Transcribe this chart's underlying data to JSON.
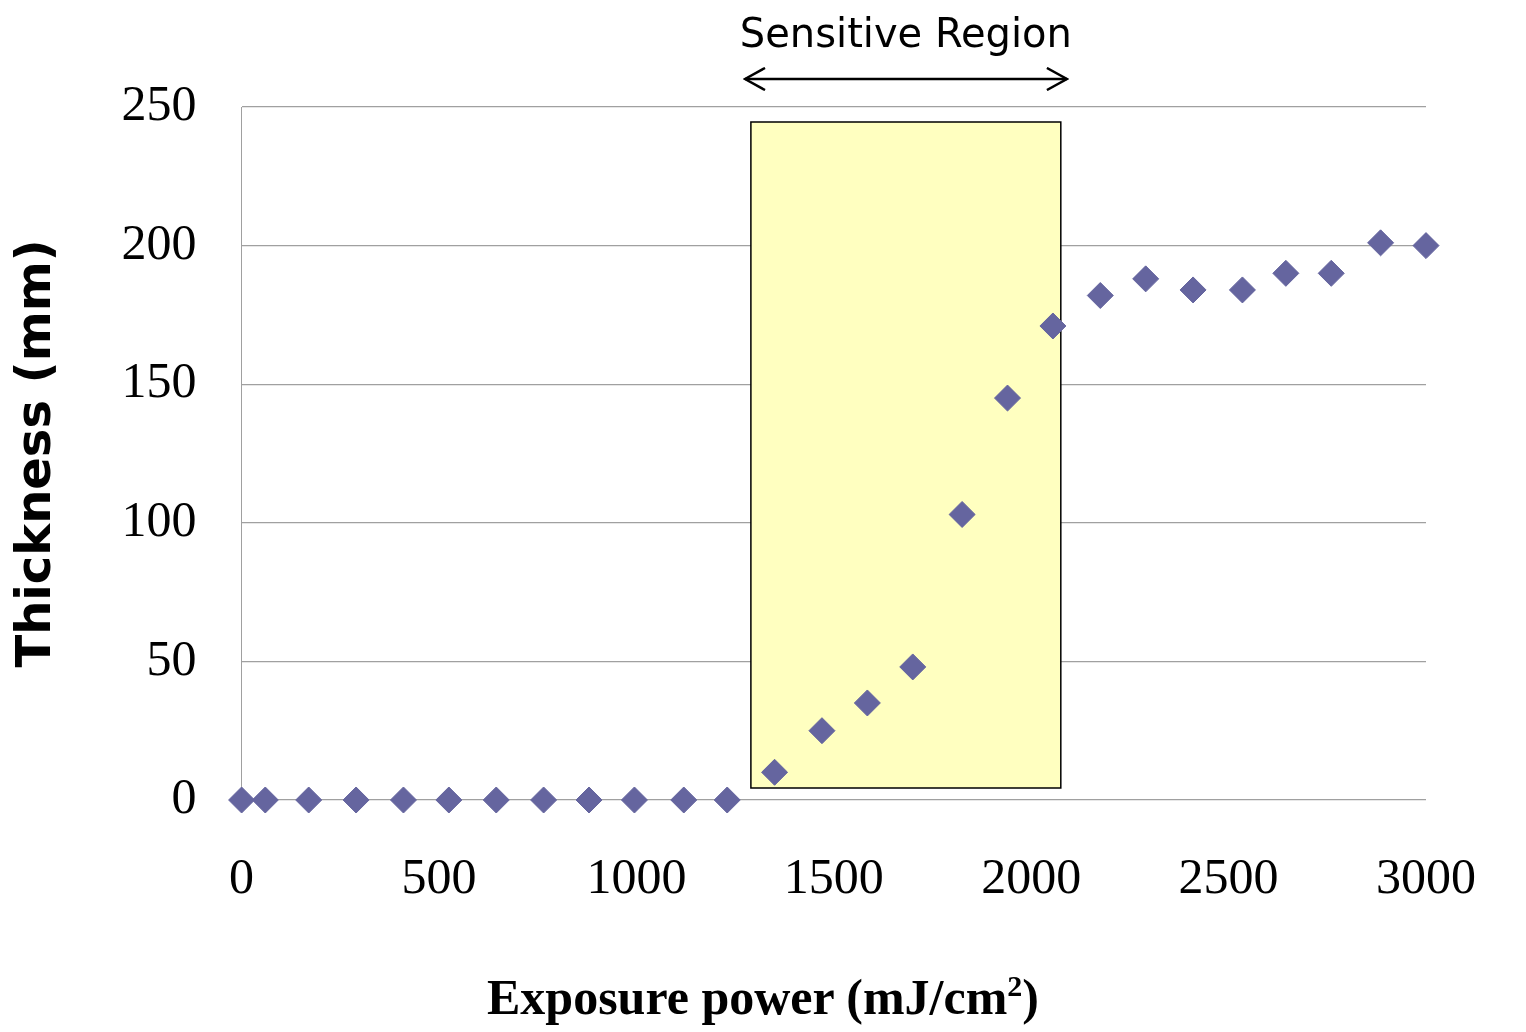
{
  "chart_data": {
    "type": "scatter",
    "xlabel": "Exposure power (mJ/cm$^{2}$)",
    "ylabel": "Thickness (mm)",
    "x": [
      0,
      60,
      170,
      290,
      410,
      525,
      645,
      765,
      880,
      995,
      1120,
      1230,
      1350,
      1470,
      1585,
      1700,
      1825,
      1940,
      2055,
      2175,
      2290,
      2410,
      2535,
      2645,
      2760,
      2885,
      3000
    ],
    "series": [
      {
        "color": "#65659f",
        "values": [
          0,
          0,
          0,
          0,
          0,
          0,
          0,
          0,
          0,
          0,
          0,
          0,
          10,
          25,
          35,
          48,
          103,
          145,
          171,
          182,
          188,
          184,
          184,
          190,
          190,
          201,
          200
        ]
      }
    ],
    "xlim": [
      0,
      3000
    ],
    "xticks": [
      0,
      500,
      1000,
      1500,
      2000,
      2500,
      3000
    ],
    "ylim": [
      0,
      250
    ],
    "yticks": [
      0,
      50,
      100,
      150,
      200,
      250
    ],
    "grid": "y",
    "marker": "diamond",
    "legend": false,
    "bands": [
      {
        "axis": "x",
        "from": 1290,
        "to": 2075,
        "label": "Sensitive Region",
        "color": "#ffffc0"
      }
    ]
  }
}
